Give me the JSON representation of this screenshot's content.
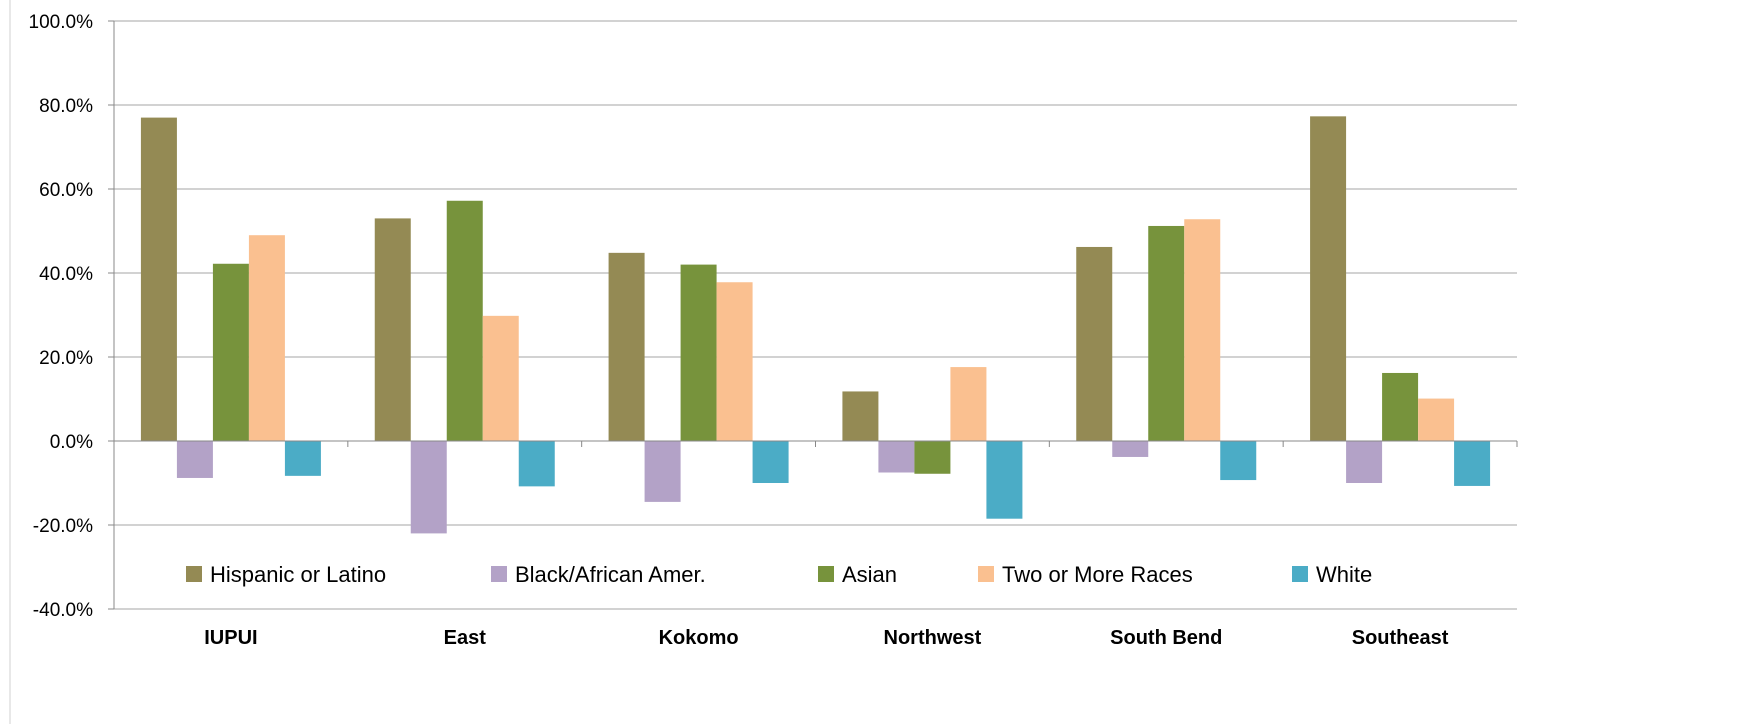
{
  "chart_data": {
    "type": "bar",
    "categories": [
      "IUPUI",
      "East",
      "Kokomo",
      "Northwest",
      "South Bend",
      "Southeast"
    ],
    "series": [
      {
        "name": "Hispanic or Latino",
        "color": "#948A54",
        "values": [
          77.0,
          53.0,
          44.8,
          11.8,
          46.2,
          77.3
        ]
      },
      {
        "name": "Black/African Amer.",
        "color": "#B3A2C7",
        "values": [
          -8.8,
          -22.0,
          -14.5,
          -7.5,
          -3.8,
          -10.0
        ]
      },
      {
        "name": "Asian",
        "color": "#77933C",
        "values": [
          42.2,
          57.2,
          42.0,
          -7.8,
          51.2,
          16.2
        ]
      },
      {
        "name": "Two or More Races",
        "color": "#FAC090",
        "values": [
          49.0,
          29.8,
          37.8,
          17.6,
          52.8,
          10.1
        ]
      },
      {
        "name": "White",
        "color": "#4BACC6",
        "values": [
          -8.3,
          -10.8,
          -10.0,
          -18.5,
          -9.3,
          -10.7
        ]
      }
    ],
    "y_ticks": [
      "100.0%",
      "80.0%",
      "60.0%",
      "40.0%",
      "20.0%",
      "0.0%",
      "-20.0%",
      "-40.0%"
    ],
    "ylim": [
      -40,
      100
    ],
    "grid": true,
    "legend_position": "inside-bottom",
    "title": "",
    "xlabel": "",
    "ylabel": ""
  }
}
